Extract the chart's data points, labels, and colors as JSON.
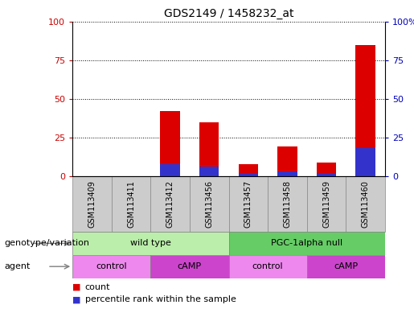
{
  "title": "GDS2149 / 1458232_at",
  "samples": [
    "GSM113409",
    "GSM113411",
    "GSM113412",
    "GSM113456",
    "GSM113457",
    "GSM113458",
    "GSM113459",
    "GSM113460"
  ],
  "count_values": [
    0,
    0,
    42,
    35,
    8,
    19,
    9,
    85
  ],
  "percentile_values": [
    0,
    0,
    8,
    6,
    2,
    3,
    2,
    18
  ],
  "ylim": [
    0,
    100
  ],
  "y_ticks": [
    0,
    25,
    50,
    75,
    100
  ],
  "bar_color_count": "#dd0000",
  "bar_color_percentile": "#3333cc",
  "genotype_groups": [
    {
      "label": "wild type",
      "start": 0,
      "end": 4,
      "color": "#bbeeaa"
    },
    {
      "label": "PGC-1alpha null",
      "start": 4,
      "end": 8,
      "color": "#66cc66"
    }
  ],
  "agent_groups": [
    {
      "label": "control",
      "start": 0,
      "end": 2,
      "color": "#ee88ee"
    },
    {
      "label": "cAMP",
      "start": 2,
      "end": 4,
      "color": "#cc44cc"
    },
    {
      "label": "control",
      "start": 4,
      "end": 6,
      "color": "#ee88ee"
    },
    {
      "label": "cAMP",
      "start": 6,
      "end": 8,
      "color": "#cc44cc"
    }
  ],
  "legend_count_label": "count",
  "legend_percentile_label": "percentile rank within the sample",
  "genotype_label": "genotype/variation",
  "agent_label": "agent",
  "tick_color_left": "#cc0000",
  "tick_color_right": "#0000bb",
  "grid_color": "#000000",
  "bar_width": 0.5,
  "background_color": "#ffffff",
  "plot_bg_color": "#ffffff",
  "sample_area_color": "#cccccc",
  "sample_border_color": "#888888"
}
